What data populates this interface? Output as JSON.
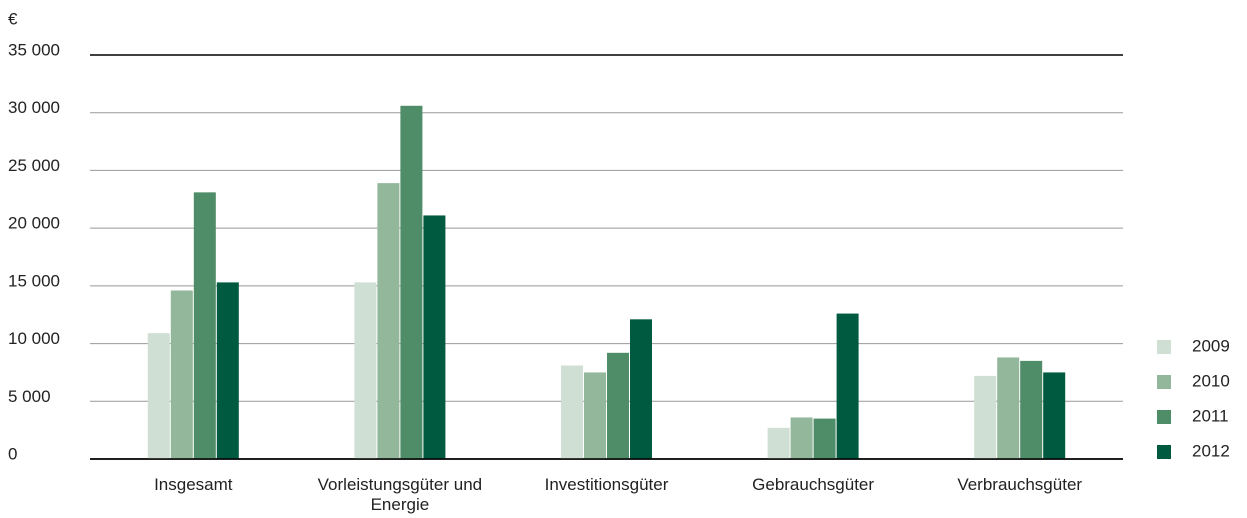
{
  "chart_data": {
    "type": "bar",
    "y_label": "€",
    "categories": [
      "Insgesamt",
      "Vorleistungsgüter und Energie",
      "Investitionsgüter",
      "Gebrauchsgüter",
      "Verbrauchsgüter"
    ],
    "series": [
      {
        "name": "2009",
        "color": "#d0dfd3",
        "values": [
          10900,
          15300,
          8100,
          2700,
          7200
        ]
      },
      {
        "name": "2010",
        "color": "#93b79b",
        "values": [
          14600,
          23900,
          7500,
          3600,
          8800
        ]
      },
      {
        "name": "2011",
        "color": "#4f8c68",
        "values": [
          23100,
          30600,
          9200,
          3500,
          8500
        ]
      },
      {
        "name": "2012",
        "color": "#005a3f",
        "values": [
          15300,
          21100,
          12100,
          12600,
          7500
        ]
      }
    ],
    "ylim": [
      0,
      35000
    ],
    "yticks": [
      0,
      {
        "value": 5000,
        "label": "5 000"
      },
      {
        "value": 10000,
        "label": "10 000"
      },
      {
        "value": 15000,
        "label": "15 000"
      },
      {
        "value": 20000,
        "label": "20 000"
      },
      {
        "value": 25000,
        "label": "25 000"
      },
      {
        "value": 30000,
        "label": "30 000"
      },
      {
        "value": 35000,
        "label": "35 000"
      }
    ],
    "grid": true,
    "legend": "right"
  }
}
